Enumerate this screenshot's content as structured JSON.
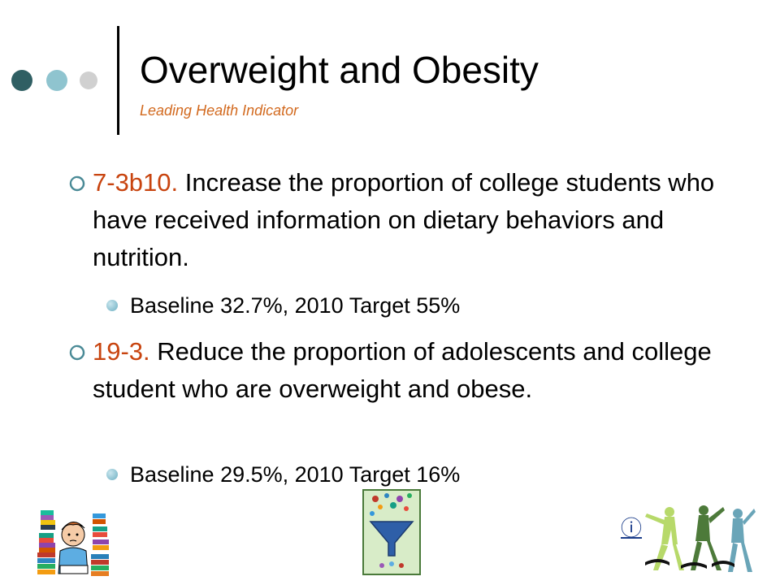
{
  "header": {
    "title": "Overweight and Obesity",
    "subtitle": "Leading Health Indicator"
  },
  "bullets": [
    {
      "code": "7-3b10.",
      "text": "Increase the proportion of college students who have received information on dietary behaviors and nutrition.",
      "sub": "Baseline 32.7%, 2010 Target 55%"
    },
    {
      "code": "19-3.",
      "text": "Reduce the proportion of adolescents and college student who are overweight and obese.",
      "sub": "Baseline 29.5%, 2010 Target 16%"
    }
  ],
  "info_link": "ⓘ",
  "icons": [
    "student-books-clipart",
    "nutrition-funnel-clipart",
    "dancers-clipart",
    "info-icon"
  ],
  "colors": {
    "accent_code": "#c8440f",
    "subtitle": "#d2691e",
    "dot_dark": "#2f5f63",
    "dot_mid": "#8fc4cf",
    "dot_light": "#d0d0d0"
  }
}
